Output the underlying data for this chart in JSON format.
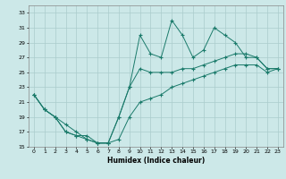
{
  "title": "",
  "xlabel": "Humidex (Indice chaleur)",
  "background_color": "#cce8e8",
  "grid_color": "#aacccc",
  "line_color": "#1a7a6a",
  "xlim": [
    -0.5,
    23.5
  ],
  "ylim": [
    15,
    34
  ],
  "yticks": [
    15,
    17,
    19,
    21,
    23,
    25,
    27,
    29,
    31,
    33
  ],
  "xticks": [
    0,
    1,
    2,
    3,
    4,
    5,
    6,
    7,
    8,
    9,
    10,
    11,
    12,
    13,
    14,
    15,
    16,
    17,
    18,
    19,
    20,
    21,
    22,
    23
  ],
  "series": {
    "line1_x": [
      0,
      1,
      2,
      3,
      4,
      5,
      6,
      7,
      8,
      9,
      10,
      11,
      12,
      13,
      14,
      15,
      16,
      17,
      18,
      19,
      20,
      21,
      22,
      23
    ],
    "line1_y": [
      22,
      20,
      19,
      18,
      17,
      16,
      15.5,
      15.5,
      19,
      23,
      30,
      27.5,
      27,
      32,
      30,
      27,
      28,
      31,
      30,
      29,
      27,
      27,
      25.5,
      25.5
    ],
    "line2_x": [
      0,
      1,
      2,
      3,
      4,
      5,
      6,
      7,
      8,
      9,
      10,
      11,
      12,
      13,
      14,
      15,
      16,
      17,
      18,
      19,
      20,
      21,
      22,
      23
    ],
    "line2_y": [
      22,
      20,
      19,
      17,
      16.5,
      16.5,
      15.5,
      15.5,
      19,
      23,
      25.5,
      25,
      25,
      25,
      25.5,
      25.5,
      26,
      26.5,
      27,
      27.5,
      27.5,
      27,
      25.5,
      25.5
    ],
    "line3_x": [
      0,
      1,
      2,
      3,
      4,
      5,
      6,
      7,
      8,
      9,
      10,
      11,
      12,
      13,
      14,
      15,
      16,
      17,
      18,
      19,
      20,
      21,
      22,
      23
    ],
    "line3_y": [
      22,
      20,
      19,
      17,
      16.5,
      16,
      15.5,
      15.5,
      16,
      19,
      21,
      21.5,
      22,
      23,
      23.5,
      24,
      24.5,
      25,
      25.5,
      26,
      26,
      26,
      25,
      25.5
    ]
  }
}
